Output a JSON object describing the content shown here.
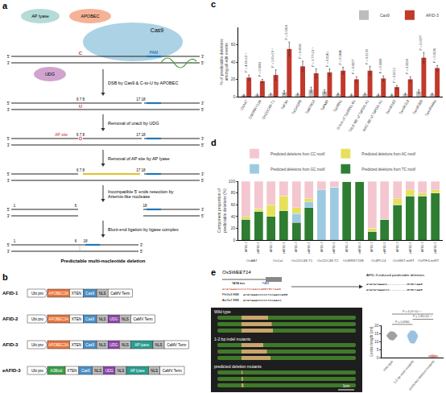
{
  "figure": {
    "panel_a": {
      "letter": "a",
      "enzymes": {
        "ap_lyase": "AP lyase",
        "apobec": "APOBEC",
        "udg": "UDG",
        "cas9": "Cas9"
      },
      "pam": "PAM",
      "ends": [
        "5'",
        "3'"
      ],
      "target_base": "C",
      "uracil": "U",
      "ap_site": "AP site",
      "steps": [
        "DSB by Cas9 & C-to-U by APOBEC",
        "Removal of uracil by UDG",
        "Removal of AP site by AP lyase",
        "Incompatible 5' ends resection by Artemis-like nuclease",
        "Blunt-end ligation by ligase complex"
      ],
      "positions": [
        [
          "6 7 8",
          "17 18"
        ],
        [
          "6 7 8",
          "17 18"
        ],
        [
          "6 7 8",
          "17 18"
        ],
        [
          "1",
          "6",
          "18"
        ],
        [
          "1",
          "6",
          "18"
        ]
      ],
      "result": "Predictable multi-nucleotide deletion"
    },
    "panel_b": {
      "letter": "b",
      "constructs": [
        {
          "name": "AFID-1",
          "parts": [
            {
              "label": "Ubi pro",
              "color": "#ffffff"
            },
            {
              "label": "APOBEC3A",
              "color": "#e8743b"
            },
            {
              "label": "XTEN",
              "color": "#ffffff"
            },
            {
              "label": "Cas9",
              "color": "#4a90c8"
            },
            {
              "label": "NLS",
              "color": "#bdbdbd"
            },
            {
              "label": "CaMV Term",
              "color": "#ffffff"
            }
          ]
        },
        {
          "name": "AFID-2",
          "parts": [
            {
              "label": "Ubi pro",
              "color": "#ffffff"
            },
            {
              "label": "APOBEC3A",
              "color": "#e8743b"
            },
            {
              "label": "XTEN",
              "color": "#ffffff"
            },
            {
              "label": "Cas9",
              "color": "#4a90c8"
            },
            {
              "label": "NLS",
              "color": "#bdbdbd"
            },
            {
              "label": "UDG",
              "color": "#8e44ad"
            },
            {
              "label": "NLS",
              "color": "#bdbdbd"
            },
            {
              "label": "CaMV Term",
              "color": "#ffffff"
            }
          ]
        },
        {
          "name": "AFID-3",
          "parts": [
            {
              "label": "Ubi pro",
              "color": "#ffffff"
            },
            {
              "label": "APOBEC3A",
              "color": "#e8743b"
            },
            {
              "label": "XTEN",
              "color": "#ffffff"
            },
            {
              "label": "Cas9",
              "color": "#4a90c8"
            },
            {
              "label": "NLS",
              "color": "#bdbdbd"
            },
            {
              "label": "UDG",
              "color": "#8e44ad"
            },
            {
              "label": "NLS",
              "color": "#bdbdbd"
            },
            {
              "label": "AP lyase",
              "color": "#2a9d8f"
            },
            {
              "label": "NLS",
              "color": "#bdbdbd"
            },
            {
              "label": "CaMV Term",
              "color": "#ffffff"
            }
          ]
        },
        {
          "name": "eAFID-3",
          "parts": [
            {
              "label": "Ubi pro",
              "color": "#ffffff"
            },
            {
              "label": "A3Bctd",
              "color": "#3a9d48"
            },
            {
              "label": "XTEN",
              "color": "#ffffff"
            },
            {
              "label": "Cas9",
              "color": "#4a90c8"
            },
            {
              "label": "NLS",
              "color": "#bdbdbd"
            },
            {
              "label": "UDG",
              "color": "#8e44ad"
            },
            {
              "label": "NLS",
              "color": "#bdbdbd"
            },
            {
              "label": "AP lyase",
              "color": "#2a9d8f"
            },
            {
              "label": "NLS",
              "color": "#bdbdbd"
            },
            {
              "label": "CaMV Term",
              "color": "#ffffff"
            }
          ]
        }
      ]
    },
    "panel_e": {
      "letter": "e",
      "gene": "OsSWEET14",
      "tata": "TATA box",
      "pam": "PAM",
      "target": "ATATAAACCCCCTCCAACCAGGTGCTAAG",
      "ebes": [
        {
          "name": "PthXo3 EBE",
          "seq": "ATATAAACCCCCTCCAACCAGG"
        },
        {
          "name": "AvrXa7 EBE",
          "seq": "ATATAAACCCCCTCCAACC"
        }
      ],
      "deletions_title": "AFID-3-induced predictable deletions",
      "deletions": [
        "ATATATAAACC----------GTGCTAAG",
        "ATATATAAACCC---------GTGCTAAG"
      ],
      "photo_groups": [
        "Wild type",
        "1-2 bp indel mutants",
        "predicted deletion mutants"
      ],
      "scale": "1cm"
    }
  },
  "chart_data": [
    {
      "type": "bar",
      "panel_label": "c",
      "y_label": [
        "% of predictable deletions",
        "among all edit events"
      ],
      "categories": [
        "OsAAT",
        "OsWRKY11B",
        "OsCDC48-T1",
        "TaF3H",
        "TaGASR6",
        "TaMYB10",
        "TaPMR",
        "TaVRN1",
        "G-box of TaVRN1-B1",
        "TALE-BE of TaPDS-A1",
        "NAC-BE of TaPDS-A1",
        "TamiR160",
        "TamiR219",
        "TamiR396",
        "TamiR444a"
      ],
      "series": [
        {
          "name": "Cas9",
          "color": "#bdbdbd",
          "values": [
            1.5,
            2,
            3,
            5,
            3,
            8,
            6,
            3,
            2,
            3,
            2,
            2,
            3,
            6,
            3
          ],
          "errors": [
            1,
            1,
            1,
            2,
            1,
            3,
            2,
            1,
            1,
            1,
            1,
            1,
            1,
            2,
            1
          ]
        },
        {
          "name": "AFID-3",
          "color": "#c0392b",
          "values": [
            22,
            18,
            25,
            55,
            35,
            27,
            28,
            30,
            20,
            30,
            21,
            11,
            20,
            45,
            33
          ],
          "errors": [
            3,
            2,
            6,
            8,
            6,
            5,
            4,
            4,
            3,
            5,
            3,
            2,
            3,
            6,
            3
          ]
        }
      ],
      "p_values": [
        "P = 4.38×10⁻⁵",
        "P = 0.0003",
        "P = 5.05×10⁻⁵",
        "P = 0.0018",
        "P = 0.0666",
        "P = 3.77×10⁻⁵",
        "P = 0.0245",
        "P = 0.0446",
        "P = 0.0027",
        "P = 0.0139",
        "P = 0.0009",
        "P = 0.0213",
        "P = 0.0024",
        "P = 0.0377",
        "P = 0.0236"
      ],
      "ylim": [
        0,
        80
      ],
      "yticks": [
        0,
        20,
        40,
        60
      ],
      "legend": "top right"
    },
    {
      "type": "bar",
      "panel_label": "d",
      "stacked": true,
      "y_label": [
        "Component proportion of",
        "predictable deletions (%)"
      ],
      "categories": [
        "AFID-3",
        "eAFID-3",
        "AFID-3",
        "eAFID-3",
        "AFID-3",
        "eAFID-3",
        "AFID-3",
        "eAFID-3",
        "AFID-3",
        "eAFID-3",
        "AFID-3",
        "eAFID-3",
        "AFID-3",
        "eAFID-3",
        "AFID-3",
        "eAFID-3"
      ],
      "groups": [
        "OsAAT",
        "OsCal",
        "OsCDC48-T1",
        "OsCDC48-T2",
        "OsWRKY11B",
        "OsSPL14",
        "OsGW7-miRT",
        "OsPIF4-miRT"
      ],
      "series": [
        {
          "name": "Predicted deletions from TC motif",
          "color": "#2e7d32",
          "values": [
            35,
            48,
            40,
            50,
            30,
            55,
            0,
            0,
            100,
            100,
            15,
            35,
            60,
            75,
            75,
            80
          ]
        },
        {
          "name": "Predicted deletions from GC motif",
          "color": "#9ecae1",
          "values": [
            0,
            0,
            0,
            0,
            15,
            10,
            85,
            90,
            0,
            0,
            0,
            0,
            0,
            0,
            0,
            0
          ]
        },
        {
          "name": "Predicted deletions from AC motif",
          "color": "#e6e05a",
          "values": [
            5,
            5,
            20,
            25,
            10,
            5,
            0,
            0,
            0,
            0,
            5,
            0,
            10,
            10,
            5,
            5
          ]
        },
        {
          "name": "Predicted deletions from CC motif",
          "color": "#f4c6cf",
          "values": [
            60,
            47,
            40,
            25,
            45,
            30,
            15,
            10,
            0,
            0,
            80,
            65,
            30,
            15,
            20,
            15
          ]
        }
      ],
      "ylim": [
        0,
        100
      ],
      "yticks": [
        0,
        20,
        40,
        60,
        80,
        100
      ],
      "legend": "top"
    },
    {
      "type": "violin",
      "y_label": "Lesion length (cm)",
      "categories": [
        "Wild type",
        "1-2 bp indel mutants",
        "predicted deletion mutants"
      ],
      "colors": [
        "#555555",
        "#4a90c8",
        "#c0392b"
      ],
      "values": [
        [
          11,
          12.5,
          13,
          13.5,
          14,
          14.5,
          15,
          16,
          12,
          13.8
        ],
        [
          9,
          10.5,
          12,
          13,
          13.5,
          14,
          15,
          16.5,
          11,
          14
        ],
        [
          0.4,
          0.6,
          0.8,
          1,
          1.2,
          0.5,
          0.9,
          1.5,
          0.7,
          1.1
        ]
      ],
      "comparisons": [
        {
          "groups": [
            "Wild type",
            "1-2 bp indel mutants"
          ],
          "label": "P = 0.6960"
        },
        {
          "groups": [
            "1-2 bp indel mutants",
            "predicted deletion mutants"
          ],
          "label": "P = 1.85×10⁻¹⁶"
        },
        {
          "groups": [
            "Wild type",
            "predicted deletion mutants"
          ],
          "label": "P = 6.47×10⁻¹⁷"
        }
      ],
      "ylim": [
        0,
        20
      ],
      "yticks": [
        0,
        5,
        10,
        15,
        20
      ]
    }
  ]
}
